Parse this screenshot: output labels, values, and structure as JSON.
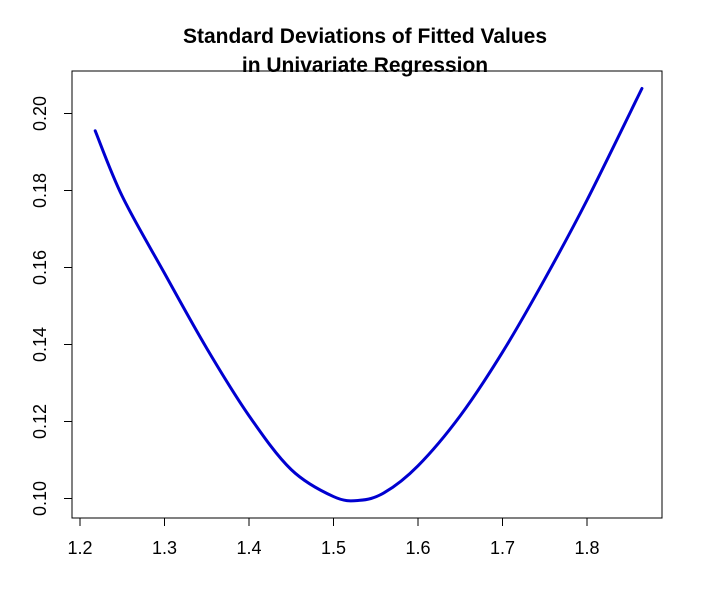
{
  "chart_data": {
    "type": "line",
    "title_lines": [
      "Standard Deviations of Fitted Values",
      "in Univariate Regression"
    ],
    "xlabel": "",
    "ylabel": "",
    "xlim": [
      1.2,
      1.88
    ],
    "ylim": [
      0.097,
      0.21
    ],
    "x_ticks": [
      1.2,
      1.3,
      1.4,
      1.5,
      1.6,
      1.7,
      1.8
    ],
    "x_tick_labels": [
      "1.2",
      "1.3",
      "1.4",
      "1.5",
      "1.6",
      "1.7",
      "1.8"
    ],
    "y_ticks": [
      0.1,
      0.12,
      0.14,
      0.16,
      0.18,
      0.2
    ],
    "y_tick_labels": [
      "0.10",
      "0.12",
      "0.14",
      "0.16",
      "0.18",
      "0.20"
    ],
    "grid": false,
    "series": [
      {
        "color": "#0000d0",
        "x": [
          1.218,
          1.25,
          1.3,
          1.35,
          1.4,
          1.45,
          1.5,
          1.53,
          1.56,
          1.6,
          1.65,
          1.7,
          1.75,
          1.8,
          1.865
        ],
        "y": [
          0.1955,
          0.1785,
          0.1585,
          0.139,
          0.1215,
          0.1075,
          0.1005,
          0.0995,
          0.1015,
          0.1085,
          0.1215,
          0.138,
          0.157,
          0.1775,
          0.2065
        ]
      }
    ]
  }
}
